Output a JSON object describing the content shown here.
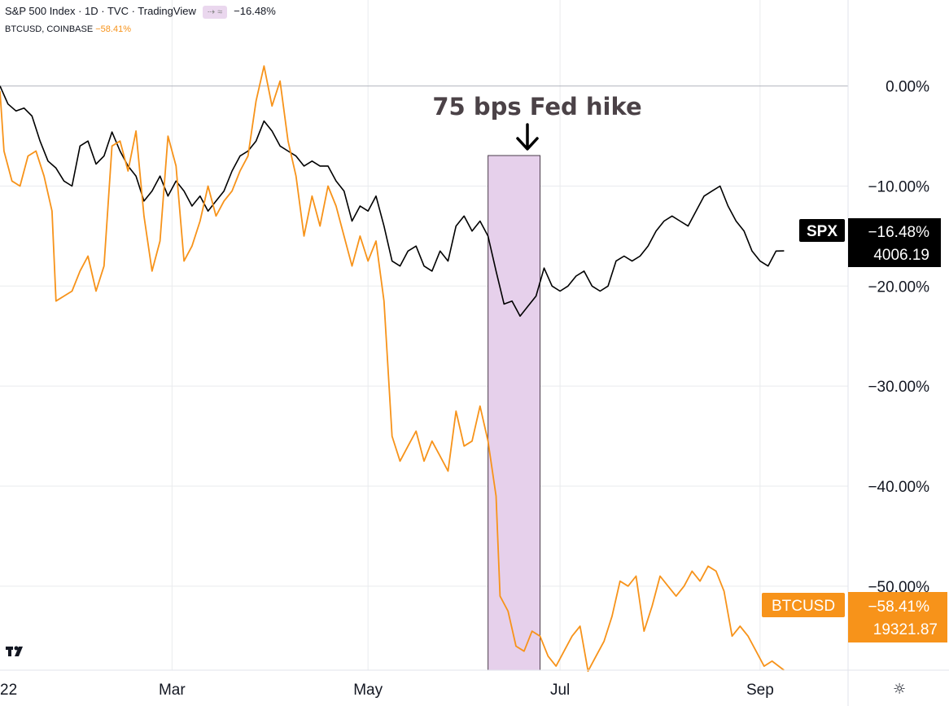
{
  "header": {
    "title": "S&P 500 Index · 1D · TVC · TradingView",
    "compare_chip": "⇢ ≈",
    "header_change": "−16.48%",
    "second_symbol": "BTCUSD, COINBASE",
    "second_change": "−58.41%"
  },
  "annotation": {
    "text": "75 bps Fed hike",
    "arrow": "down-arrow-icon",
    "highlight_color": "#e6d0eb"
  },
  "labels": {
    "spx_tag": "SPX",
    "spx_pct": "−16.48%",
    "spx_price": "4006.19",
    "btc_tag": "BTCUSD",
    "btc_pct": "−58.41%",
    "btc_price": "19321.87"
  },
  "colors": {
    "spx": "#000000",
    "btc": "#f7931a",
    "btc_tag_bg": "#f7931a",
    "spx_tag_bg": "#000000",
    "grid": "#e9ebee"
  },
  "icons": {
    "logo": "tradingview-logo-icon",
    "settings": "gear-icon"
  },
  "chart_data": {
    "type": "line",
    "y_unit": "% change",
    "ylim": [
      -58.4,
      8.6
    ],
    "yticks": [
      0,
      -10,
      -20,
      -30,
      -40,
      -50
    ],
    "ytick_labels": [
      "0.00%",
      "−10.00%",
      "−20.00%",
      "−30.00%",
      "−40.00%",
      "−50.00%"
    ],
    "xlim": [
      0,
      212
    ],
    "x_ticks": [
      {
        "x": 0,
        "label": "22"
      },
      {
        "x": 43,
        "label": "Mar"
      },
      {
        "x": 92,
        "label": "May"
      },
      {
        "x": 140,
        "label": "Jul"
      },
      {
        "x": 190,
        "label": "Sep"
      }
    ],
    "highlight_range": [
      122,
      135
    ],
    "grid": true,
    "series": [
      {
        "name": "SPX",
        "values": [
          [
            0,
            0.0
          ],
          [
            2,
            -1.8
          ],
          [
            4,
            -2.5
          ],
          [
            6,
            -2.2
          ],
          [
            8,
            -3.0
          ],
          [
            10,
            -5.5
          ],
          [
            12,
            -7.5
          ],
          [
            14,
            -8.2
          ],
          [
            16,
            -9.5
          ],
          [
            18,
            -10.0
          ],
          [
            20,
            -6.0
          ],
          [
            22,
            -5.5
          ],
          [
            24,
            -7.8
          ],
          [
            26,
            -7.0
          ],
          [
            28,
            -4.6
          ],
          [
            30,
            -6.5
          ],
          [
            32,
            -8.0
          ],
          [
            34,
            -9.0
          ],
          [
            36,
            -11.5
          ],
          [
            38,
            -10.5
          ],
          [
            40,
            -9.0
          ],
          [
            42,
            -11.0
          ],
          [
            44,
            -9.5
          ],
          [
            46,
            -10.5
          ],
          [
            48,
            -12.0
          ],
          [
            50,
            -11.0
          ],
          [
            52,
            -12.5
          ],
          [
            54,
            -11.5
          ],
          [
            56,
            -10.5
          ],
          [
            58,
            -8.5
          ],
          [
            60,
            -7.0
          ],
          [
            62,
            -6.5
          ],
          [
            64,
            -5.5
          ],
          [
            66,
            -3.5
          ],
          [
            68,
            -4.5
          ],
          [
            70,
            -6.0
          ],
          [
            72,
            -6.5
          ],
          [
            74,
            -7.0
          ],
          [
            76,
            -8.0
          ],
          [
            78,
            -7.5
          ],
          [
            80,
            -8.0
          ],
          [
            82,
            -8.0
          ],
          [
            84,
            -9.5
          ],
          [
            86,
            -10.5
          ],
          [
            88,
            -13.5
          ],
          [
            90,
            -12.0
          ],
          [
            92,
            -12.5
          ],
          [
            94,
            -11.0
          ],
          [
            96,
            -14.0
          ],
          [
            98,
            -17.5
          ],
          [
            100,
            -18.0
          ],
          [
            102,
            -16.5
          ],
          [
            104,
            -16.0
          ],
          [
            106,
            -18.0
          ],
          [
            108,
            -18.5
          ],
          [
            110,
            -16.5
          ],
          [
            112,
            -17.5
          ],
          [
            114,
            -14.0
          ],
          [
            116,
            -13.0
          ],
          [
            118,
            -14.5
          ],
          [
            120,
            -13.5
          ],
          [
            122,
            -15.0
          ],
          [
            124,
            -18.5
          ],
          [
            126,
            -21.8
          ],
          [
            128,
            -21.5
          ],
          [
            130,
            -23.0
          ],
          [
            132,
            -22.0
          ],
          [
            134,
            -21.0
          ],
          [
            136,
            -18.2
          ],
          [
            138,
            -20.0
          ],
          [
            140,
            -20.5
          ],
          [
            142,
            -20.0
          ],
          [
            144,
            -19.0
          ],
          [
            146,
            -18.5
          ],
          [
            148,
            -20.0
          ],
          [
            150,
            -20.5
          ],
          [
            152,
            -20.0
          ],
          [
            154,
            -17.5
          ],
          [
            156,
            -17.0
          ],
          [
            158,
            -17.5
          ],
          [
            160,
            -17.0
          ],
          [
            162,
            -16.0
          ],
          [
            164,
            -14.5
          ],
          [
            166,
            -13.5
          ],
          [
            168,
            -13.0
          ],
          [
            170,
            -13.5
          ],
          [
            172,
            -14.0
          ],
          [
            174,
            -12.5
          ],
          [
            176,
            -11.0
          ],
          [
            178,
            -10.5
          ],
          [
            180,
            -10.0
          ],
          [
            182,
            -12.0
          ],
          [
            184,
            -13.5
          ],
          [
            186,
            -14.5
          ],
          [
            188,
            -16.5
          ],
          [
            190,
            -17.5
          ],
          [
            192,
            -18.0
          ],
          [
            194,
            -16.5
          ],
          [
            196,
            -16.48
          ]
        ]
      },
      {
        "name": "BTCUSD",
        "values": [
          [
            0,
            -0.5
          ],
          [
            1,
            -6.5
          ],
          [
            3,
            -9.5
          ],
          [
            5,
            -10.0
          ],
          [
            7,
            -7.0
          ],
          [
            9,
            -6.5
          ],
          [
            11,
            -9.0
          ],
          [
            13,
            -12.5
          ],
          [
            14,
            -21.5
          ],
          [
            16,
            -21.0
          ],
          [
            18,
            -20.5
          ],
          [
            20,
            -18.5
          ],
          [
            22,
            -17.0
          ],
          [
            24,
            -20.5
          ],
          [
            26,
            -18.0
          ],
          [
            28,
            -6.0
          ],
          [
            30,
            -5.5
          ],
          [
            32,
            -8.5
          ],
          [
            34,
            -4.5
          ],
          [
            36,
            -13.0
          ],
          [
            38,
            -18.5
          ],
          [
            40,
            -15.5
          ],
          [
            42,
            -5.0
          ],
          [
            44,
            -8.0
          ],
          [
            46,
            -17.5
          ],
          [
            48,
            -16.0
          ],
          [
            50,
            -13.5
          ],
          [
            52,
            -10.0
          ],
          [
            54,
            -13.0
          ],
          [
            56,
            -11.5
          ],
          [
            58,
            -10.5
          ],
          [
            60,
            -8.5
          ],
          [
            62,
            -7.0
          ],
          [
            64,
            -1.5
          ],
          [
            66,
            2.0
          ],
          [
            68,
            -2.0
          ],
          [
            70,
            0.5
          ],
          [
            72,
            -5.5
          ],
          [
            74,
            -9.0
          ],
          [
            76,
            -15.0
          ],
          [
            78,
            -11.0
          ],
          [
            80,
            -14.0
          ],
          [
            82,
            -10.0
          ],
          [
            84,
            -12.0
          ],
          [
            86,
            -15.0
          ],
          [
            88,
            -18.0
          ],
          [
            90,
            -15.0
          ],
          [
            92,
            -17.5
          ],
          [
            94,
            -15.5
          ],
          [
            96,
            -21.5
          ],
          [
            98,
            -35.0
          ],
          [
            100,
            -37.5
          ],
          [
            102,
            -36.0
          ],
          [
            104,
            -34.5
          ],
          [
            106,
            -37.5
          ],
          [
            108,
            -35.5
          ],
          [
            110,
            -37.0
          ],
          [
            112,
            -38.5
          ],
          [
            114,
            -32.5
          ],
          [
            116,
            -36.0
          ],
          [
            118,
            -35.5
          ],
          [
            120,
            -32.0
          ],
          [
            122,
            -35.5
          ],
          [
            124,
            -41.0
          ],
          [
            125,
            -51.0
          ],
          [
            127,
            -52.5
          ],
          [
            129,
            -56.0
          ],
          [
            131,
            -56.5
          ],
          [
            133,
            -54.5
          ],
          [
            135,
            -55.0
          ],
          [
            137,
            -57.0
          ],
          [
            139,
            -58.0
          ],
          [
            141,
            -56.5
          ],
          [
            143,
            -55.0
          ],
          [
            145,
            -54.0
          ],
          [
            147,
            -58.5
          ],
          [
            149,
            -57.0
          ],
          [
            151,
            -55.5
          ],
          [
            153,
            -53.0
          ],
          [
            155,
            -49.5
          ],
          [
            157,
            -50.0
          ],
          [
            159,
            -49.0
          ],
          [
            161,
            -54.5
          ],
          [
            163,
            -52.0
          ],
          [
            165,
            -49.0
          ],
          [
            167,
            -50.0
          ],
          [
            169,
            -51.0
          ],
          [
            171,
            -50.0
          ],
          [
            173,
            -48.5
          ],
          [
            175,
            -49.5
          ],
          [
            177,
            -48.0
          ],
          [
            179,
            -48.5
          ],
          [
            181,
            -50.5
          ],
          [
            183,
            -55.0
          ],
          [
            185,
            -54.0
          ],
          [
            187,
            -55.0
          ],
          [
            189,
            -56.5
          ],
          [
            191,
            -58.0
          ],
          [
            193,
            -57.5
          ],
          [
            196,
            -58.41
          ]
        ]
      }
    ]
  }
}
